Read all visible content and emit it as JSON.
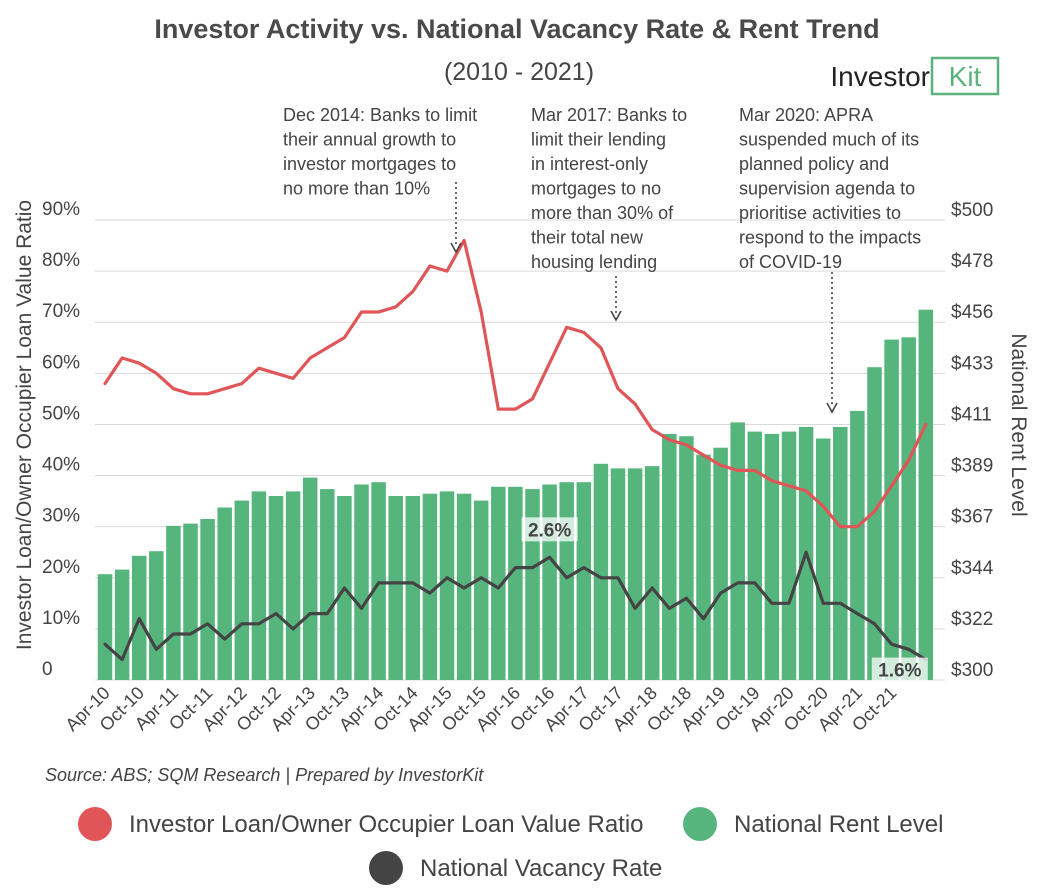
{
  "chart_data": {
    "type": "bar",
    "title": "Investor Activity vs. National Vacancy Rate & Rent Trend",
    "subtitle": "(2010 - 2021)",
    "logo": {
      "part1": "Investor",
      "part2": "Kit"
    },
    "y_left": {
      "label": "Investor Loan/Owner Occupier Loan Value Ratio",
      "range": [
        0,
        90
      ],
      "ticks": [
        "0",
        "10%",
        "20%",
        "30%",
        "40%",
        "50%",
        "60%",
        "70%",
        "80%",
        "90%"
      ]
    },
    "y_right": {
      "label": "National Rent Level",
      "range": [
        300,
        500
      ],
      "ticks": [
        "$300",
        "$322",
        "$344",
        "$367",
        "$389",
        "$411",
        "$433",
        "$456",
        "$478",
        "$500"
      ]
    },
    "x_tick_labels": [
      "Apr-10",
      "Oct-10",
      "Apr-11",
      "Oct-11",
      "Apr-12",
      "Oct-12",
      "Apr-13",
      "Oct-13",
      "Apr-14",
      "Oct-14",
      "Apr-15",
      "Oct-15",
      "Apr-16",
      "Oct-16",
      "Apr-17",
      "Oct-17",
      "Apr-18",
      "Oct-18",
      "Apr-19",
      "Oct-19",
      "Apr-20",
      "Oct-20",
      "Apr-21",
      "Oct-21"
    ],
    "x_tick_every": 2,
    "colors": {
      "rent": "#55b57d",
      "ratio": "#e05557",
      "vacancy": "#444444"
    },
    "series": [
      {
        "name": "National Rent Level",
        "type": "bar",
        "axis": "right",
        "values": [
          346,
          348,
          354,
          356,
          367,
          368,
          370,
          375,
          378,
          382,
          380,
          382,
          388,
          383,
          380,
          385,
          386,
          380,
          380,
          381,
          382,
          381,
          378,
          384,
          384,
          383,
          385,
          386,
          386,
          394,
          392,
          392,
          393,
          407,
          406,
          398,
          401,
          412,
          408,
          407,
          408,
          410,
          405,
          410,
          417,
          436,
          448,
          449,
          461
        ]
      },
      {
        "name": "Investor Loan/Owner Occupier Loan Value Ratio",
        "type": "line",
        "axis": "left",
        "values": [
          58,
          63,
          62,
          60,
          57,
          56,
          56,
          57,
          58,
          61,
          60,
          59,
          63,
          65,
          67,
          72,
          72,
          73,
          76,
          81,
          80,
          86,
          72,
          53,
          53,
          55,
          62,
          69,
          68,
          65,
          57,
          54,
          49,
          47,
          46,
          44,
          42,
          41,
          41,
          39,
          38,
          37,
          34,
          30,
          30,
          33,
          38,
          43,
          50
        ]
      },
      {
        "name": "National Vacancy Rate",
        "type": "line",
        "axis": "left",
        "values": [
          7,
          4,
          12,
          6,
          9,
          9,
          11,
          8,
          11,
          11,
          13,
          10,
          13,
          13,
          18,
          14,
          19,
          19,
          19,
          17,
          20,
          18,
          20,
          18,
          22,
          22,
          24,
          20,
          22,
          20,
          20,
          14,
          18,
          14,
          16,
          12,
          17,
          19,
          19,
          15,
          15,
          25,
          15,
          15,
          13,
          11,
          7,
          6,
          4
        ]
      }
    ],
    "data_labels": [
      {
        "text": "2.6%",
        "series": "National Vacancy Rate",
        "index": 26
      },
      {
        "text": "1.6%",
        "series": "National Vacancy Rate",
        "index": 48
      }
    ],
    "annotations": [
      {
        "lines": [
          "Dec 2014: Banks to limit",
          "their annual growth to",
          "investor mortgages to",
          "no more than 10%"
        ],
        "index": 20
      },
      {
        "lines": [
          "Mar 2017: Banks to",
          "limit their lending",
          "in interest-only",
          "mortgages to no",
          "more than 30% of",
          "their total new",
          "housing lending"
        ],
        "index": 30
      },
      {
        "lines": [
          "Mar 2020: APRA",
          "suspended much of its",
          "planned policy and",
          "supervision agenda to",
          "prioritise activities to",
          "respond to the impacts",
          "of COVID-19"
        ],
        "index": 41
      }
    ],
    "source": "Source: ABS; SQM Research | Prepared by InvestorKit",
    "legend": [
      {
        "label": "Investor Loan/Owner Occupier Loan Value Ratio",
        "color": "#e05557"
      },
      {
        "label": "National Rent Level",
        "color": "#55b57d"
      },
      {
        "label": "National Vacancy Rate",
        "color": "#444444"
      }
    ],
    "grid": true
  }
}
